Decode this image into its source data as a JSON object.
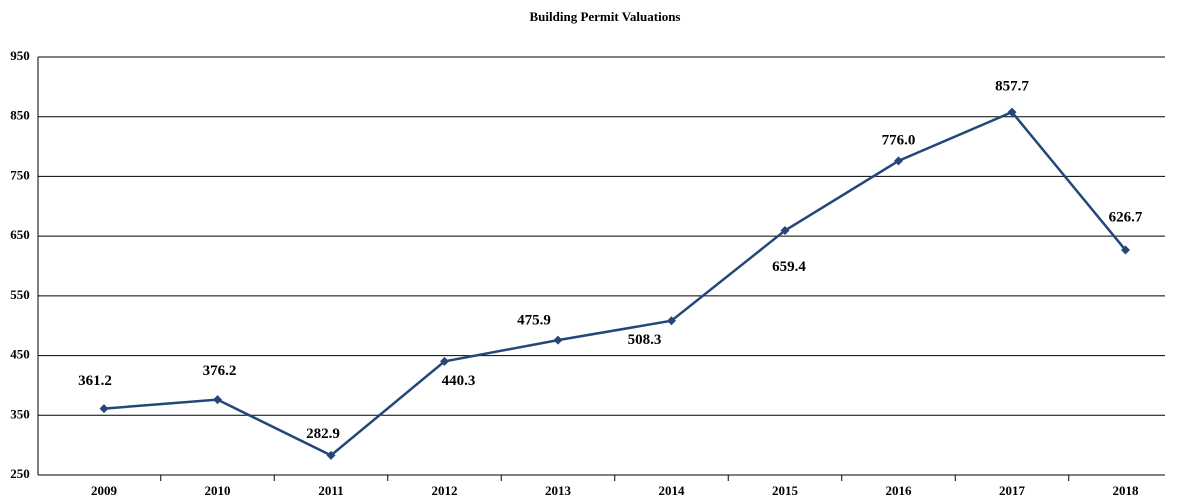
{
  "chart_data": {
    "type": "line",
    "title": "Building Permit Valuations",
    "categories": [
      "2009",
      "2010",
      "2011",
      "2012",
      "2013",
      "2014",
      "2015",
      "2016",
      "2017",
      "2018"
    ],
    "series": [
      {
        "name": "Building Permit Valuations",
        "color": "#24477a",
        "values": [
          361.2,
          376.2,
          282.9,
          440.3,
          475.9,
          508.3,
          659.4,
          776.0,
          857.7,
          626.7
        ],
        "value_labels": [
          "361.2",
          "376.2",
          "282.9",
          "440.3",
          "475.9",
          "508.3",
          "659.4",
          "776.0",
          "857.7",
          "626.7"
        ]
      }
    ],
    "ylim": [
      250,
      950
    ],
    "yticks": [
      250,
      350,
      450,
      550,
      650,
      750,
      850,
      950
    ],
    "grid": true
  }
}
